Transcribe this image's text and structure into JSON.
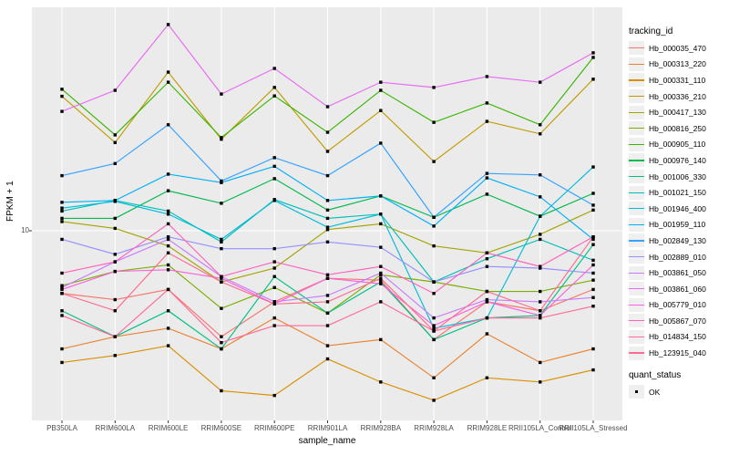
{
  "labels": {
    "ylabel": "FPKM + 1",
    "xlabel": "sample_name",
    "y_tick": "10",
    "legend_tracking_title": "tracking_id",
    "legend_quant_title": "quant_status",
    "quant_ok": "OK"
  },
  "chart_data": {
    "type": "line",
    "title": "",
    "xlabel": "sample_name",
    "ylabel": "FPKM + 1",
    "y_scale": "log10",
    "y_tick_values": [
      10
    ],
    "ylim": [
      2,
      66
    ],
    "grid": "on",
    "legend_position": "right",
    "point_shape": "filled-square",
    "point_color": "#000000",
    "panel_bg": "#EBEBEB",
    "grid_color": "#FFFFFF",
    "quant_status_items": [
      "OK"
    ],
    "x_categories": [
      "PB350LA",
      "RRIM600LA",
      "RRIM600LE",
      "RRIM600SE",
      "RRIM600PE",
      "RRIM901LA",
      "RRIM928BA",
      "RRIM928LA",
      "RRIM928LE",
      "RRII105LA_Control",
      "RRII105LA_Stressed"
    ],
    "series": [
      {
        "name": "Hb_000035_470",
        "color": "#F8766D",
        "values": [
          5.9,
          5.6,
          6.1,
          4.1,
          5.5,
          6.7,
          6.6,
          4.0,
          5.5,
          5.1,
          6.1
        ]
      },
      {
        "name": "Hb_000313_220",
        "color": "#EA8331",
        "values": [
          3.7,
          4.1,
          4.4,
          3.7,
          4.8,
          3.8,
          4.0,
          2.9,
          4.2,
          3.3,
          3.7
        ]
      },
      {
        "name": "Hb_000331_110",
        "color": "#D89000",
        "values": [
          3.3,
          3.5,
          3.8,
          2.6,
          2.5,
          3.4,
          2.8,
          2.4,
          2.9,
          2.8,
          3.1
        ]
      },
      {
        "name": "Hb_000336_210",
        "color": "#C09B00",
        "values": [
          31.0,
          21.0,
          38.0,
          21.6,
          33.4,
          19.5,
          27.5,
          17.9,
          25.1,
          22.6,
          35.8
        ]
      },
      {
        "name": "Hb_000417_130",
        "color": "#A3A500",
        "values": [
          10.8,
          10.2,
          8.8,
          6.5,
          7.3,
          10.1,
          10.6,
          8.8,
          8.3,
          9.7,
          11.9
        ]
      },
      {
        "name": "Hb_000816_250",
        "color": "#7CAE00",
        "values": [
          6.3,
          7.1,
          7.5,
          5.2,
          6.2,
          5.0,
          6.9,
          6.5,
          6.0,
          6.0,
          6.6
        ]
      },
      {
        "name": "Hb_000905_110",
        "color": "#39B600",
        "values": [
          32.9,
          22.4,
          34.9,
          21.9,
          31.1,
          22.9,
          32.6,
          24.9,
          29.3,
          24.4,
          43.0
        ]
      },
      {
        "name": "Hb_000976_140",
        "color": "#00BB4E",
        "values": [
          11.1,
          11.1,
          14.0,
          12.6,
          15.5,
          11.9,
          13.4,
          11.2,
          13.6,
          11.3,
          13.7
        ]
      },
      {
        "name": "Hb_001006_330",
        "color": "#00C087",
        "values": [
          5.1,
          4.1,
          5.1,
          3.7,
          6.8,
          5.0,
          6.5,
          4.0,
          4.8,
          4.9,
          8.9
        ]
      },
      {
        "name": "Hb_001021_150",
        "color": "#00C0B8",
        "values": [
          11.8,
          12.9,
          11.8,
          9.1,
          13.0,
          11.1,
          11.5,
          6.5,
          7.9,
          9.3,
          7.8
        ]
      },
      {
        "name": "Hb_001946_400",
        "color": "#00BCD8",
        "values": [
          12.1,
          12.8,
          11.5,
          9.3,
          12.9,
          10.3,
          11.5,
          4.4,
          4.8,
          11.3,
          17.1
        ]
      },
      {
        "name": "Hb_001959_110",
        "color": "#00B0F6",
        "values": [
          12.7,
          12.9,
          16.1,
          15.0,
          17.2,
          12.9,
          13.4,
          10.4,
          15.6,
          13.3,
          9.3
        ]
      },
      {
        "name": "Hb_002849_130",
        "color": "#35A2FF",
        "values": [
          15.9,
          17.6,
          24.4,
          15.2,
          18.5,
          15.9,
          20.9,
          11.2,
          16.2,
          16.0,
          12.4
        ]
      },
      {
        "name": "Hb_002889_010",
        "color": "#9590FF",
        "values": [
          9.3,
          8.2,
          9.5,
          8.6,
          8.6,
          9.1,
          8.7,
          6.5,
          7.4,
          7.3,
          7.0
        ]
      },
      {
        "name": "Hb_003861_050",
        "color": "#C77CFF",
        "values": [
          6.2,
          7.7,
          9.3,
          6.8,
          5.5,
          5.8,
          7.0,
          4.8,
          5.6,
          5.5,
          5.7
        ]
      },
      {
        "name": "Hb_003861_060",
        "color": "#E76BF3",
        "values": [
          27.3,
          32.6,
          56.7,
          31.6,
          39.2,
          28.4,
          34.9,
          33.4,
          36.6,
          34.9,
          44.7
        ]
      },
      {
        "name": "Hb_005779_010",
        "color": "#FA62DB",
        "values": [
          6.1,
          7.1,
          7.2,
          6.7,
          5.4,
          6.7,
          6.4,
          4.5,
          5.5,
          4.9,
          7.5
        ]
      },
      {
        "name": "Hb_005867_070",
        "color": "#FF62BC",
        "values": [
          7.0,
          7.7,
          10.6,
          6.8,
          7.7,
          6.9,
          7.4,
          5.9,
          8.3,
          7.4,
          9.5
        ]
      },
      {
        "name": "Hb_014834_150",
        "color": "#FF6A98",
        "values": [
          4.9,
          4.1,
          6.1,
          3.9,
          4.5,
          4.5,
          5.5,
          4.3,
          4.8,
          4.8,
          5.3
        ]
      },
      {
        "name": "Hb_123915_040",
        "color": "#FF6C91",
        "values": [
          5.9,
          5.1,
          8.3,
          6.5,
          5.4,
          5.5,
          6.7,
          4.3,
          6.0,
          5.1,
          9.5
        ]
      }
    ]
  }
}
